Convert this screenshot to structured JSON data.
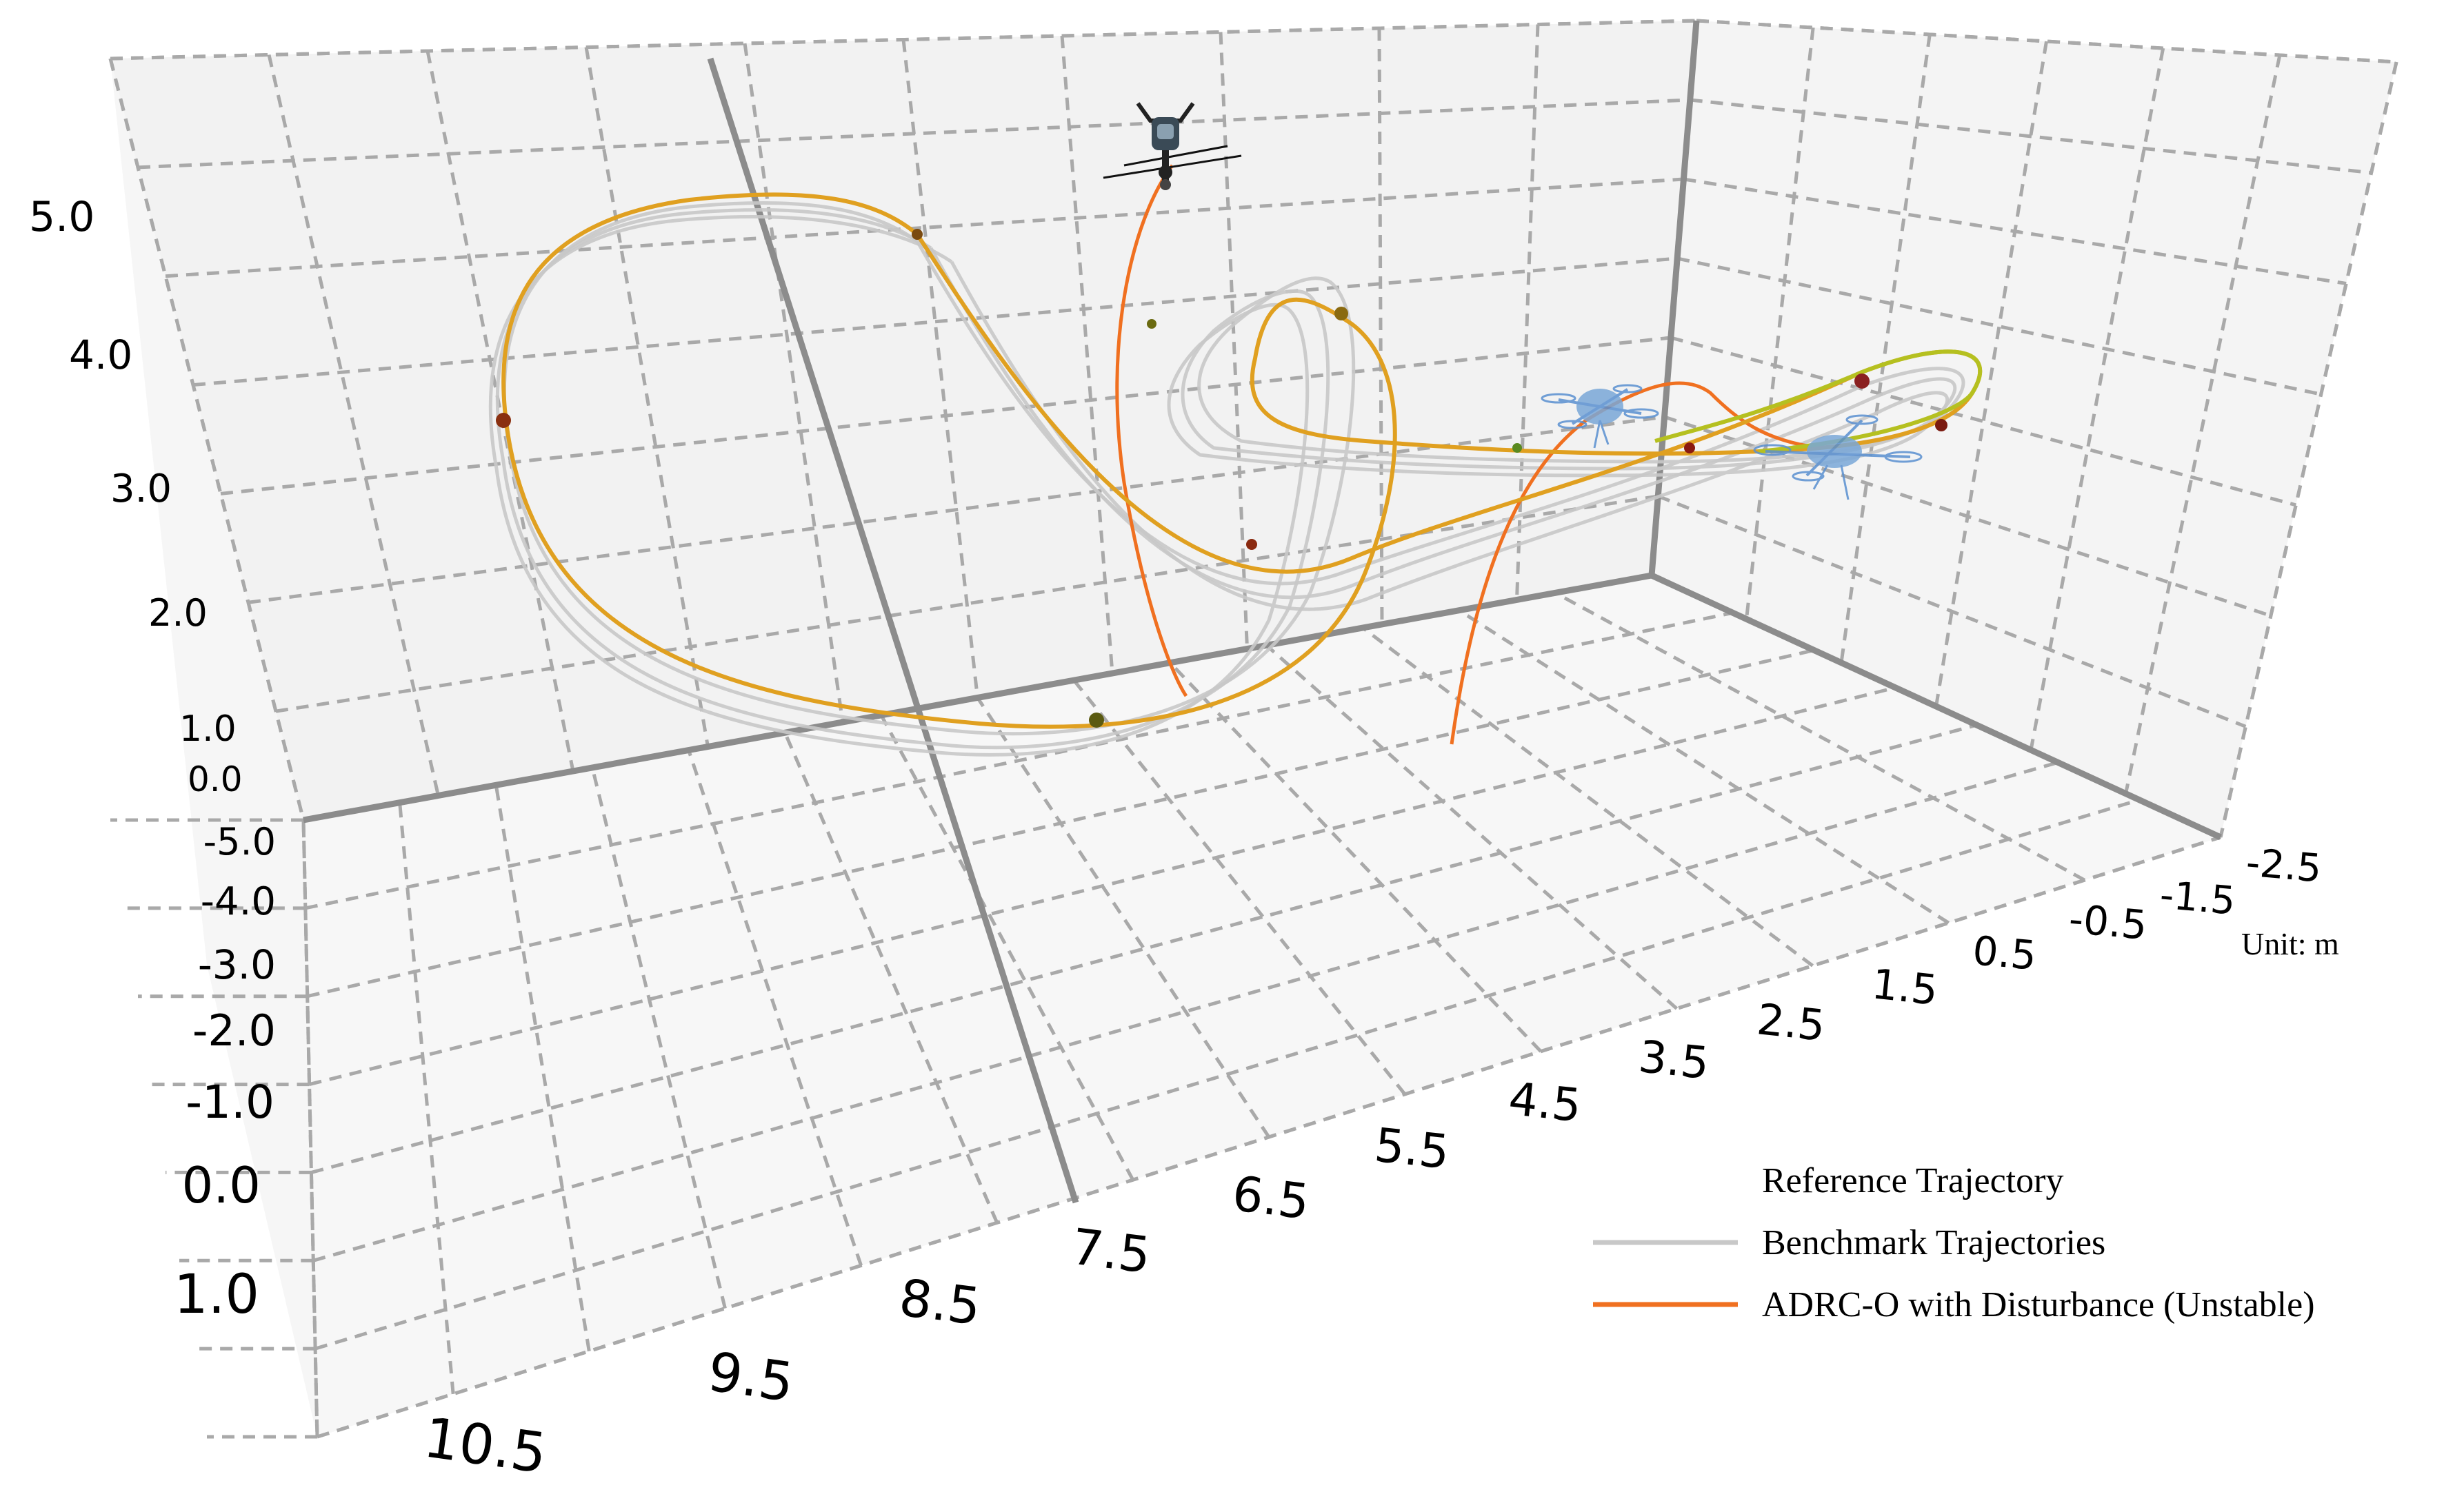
{
  "chart_data": {
    "type": "line3d",
    "unit_label": "Unit: m",
    "z_ticks": [
      "0.0",
      "1.0",
      "2.0",
      "3.0",
      "4.0",
      "5.0"
    ],
    "y_ticks": [
      "-5.0",
      "-4.0",
      "-3.0",
      "-2.0",
      "-1.0",
      "0.0",
      "1.0"
    ],
    "x_ticks": [
      "10.5",
      "9.5",
      "8.5",
      "7.5",
      "6.5",
      "5.5",
      "4.5",
      "3.5",
      "2.5",
      "1.5",
      "0.5",
      "-0.5",
      "-1.5",
      "-2.5"
    ],
    "grid": true,
    "legend_position": "bottom-right",
    "legend": [
      {
        "label": "Reference Trajectory",
        "color_start": "#44cc22",
        "color_end": "#c0391a"
      },
      {
        "label": "Benchmark Trajectories",
        "color": "#c8c8c8"
      },
      {
        "label": "ADRC-O  with Disturbance (Unstable)",
        "color": "#f07020"
      }
    ],
    "series": [
      {
        "key": "reference",
        "color": "#e0a020",
        "color_tail": "#b5c020"
      },
      {
        "key": "benchmark",
        "color": "#c8c8c8"
      },
      {
        "key": "adrc_o",
        "color": "#f07020"
      }
    ],
    "markers": [
      {
        "color": "#7a4a10"
      },
      {
        "color": "#8a3010"
      },
      {
        "color": "#5a5a10"
      },
      {
        "color": "#8a6a10"
      },
      {
        "color": "#6a6a10"
      },
      {
        "color": "#8a2a10"
      },
      {
        "color": "#8a2020"
      },
      {
        "color": "#7a1a10"
      },
      {
        "color": "#8a1a10"
      },
      {
        "color": "#5a8a20"
      }
    ],
    "icons": [
      "quadrotor-dark-icon",
      "quadrotor-blue-icon",
      "quadrotor-blue-icon"
    ]
  }
}
